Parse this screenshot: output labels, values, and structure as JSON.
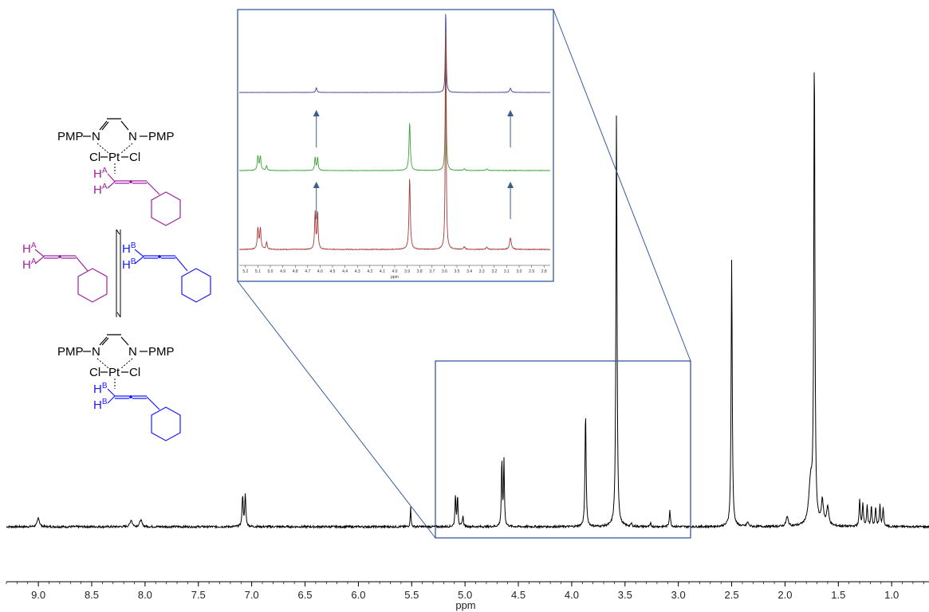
{
  "chart_data": {
    "type": "line",
    "xlabel": "ppm",
    "xlim": [
      9.3,
      0.65
    ],
    "x_ticks": [
      "9.0",
      "8.5",
      "8.0",
      "7.5",
      "7.0",
      "6.5",
      "6.0",
      "5.5",
      "5.0",
      "4.5",
      "4.0",
      "3.5",
      "3.0",
      "2.5",
      "2.0",
      "1.5",
      "1.0"
    ],
    "series": [
      {
        "peaks": [
          {
            "ppm": 9.0,
            "height": 0.017,
            "width": 0.012
          },
          {
            "ppm": 8.13,
            "height": 0.013,
            "width": 0.012
          },
          {
            "ppm": 8.04,
            "height": 0.013,
            "width": 0.012
          },
          {
            "ppm": 7.085,
            "height": 0.06,
            "width": 0.006
          },
          {
            "ppm": 7.06,
            "height": 0.06,
            "width": 0.006
          },
          {
            "ppm": 5.51,
            "height": 0.04,
            "width": 0.004
          },
          {
            "ppm": 5.09,
            "height": 0.06,
            "width": 0.005
          },
          {
            "ppm": 5.07,
            "height": 0.06,
            "width": 0.005
          },
          {
            "ppm": 5.02,
            "height": 0.02,
            "width": 0.006
          },
          {
            "ppm": 4.655,
            "height": 0.125,
            "width": 0.005
          },
          {
            "ppm": 4.635,
            "height": 0.125,
            "width": 0.005
          },
          {
            "ppm": 3.87,
            "height": 0.22,
            "width": 0.006
          },
          {
            "ppm": 3.58,
            "height": 0.79,
            "width": 0.006
          },
          {
            "ppm": 3.44,
            "height": 0.006,
            "width": 0.005
          },
          {
            "ppm": 3.26,
            "height": 0.006,
            "width": 0.005
          },
          {
            "ppm": 3.08,
            "height": 0.032,
            "width": 0.006
          },
          {
            "ppm": 2.5,
            "height": 0.51,
            "width": 0.006
          },
          {
            "ppm": 2.35,
            "height": 0.008,
            "width": 0.01
          },
          {
            "ppm": 1.98,
            "height": 0.018,
            "width": 0.012
          },
          {
            "ppm": 1.76,
            "height": 0.08,
            "width": 0.02
          },
          {
            "ppm": 1.725,
            "height": 0.9,
            "width": 0.006
          },
          {
            "ppm": 1.65,
            "height": 0.045,
            "width": 0.012
          },
          {
            "ppm": 1.6,
            "height": 0.035,
            "width": 0.012
          },
          {
            "ppm": 1.3,
            "height": 0.05,
            "width": 0.006
          },
          {
            "ppm": 1.27,
            "height": 0.045,
            "width": 0.006
          },
          {
            "ppm": 1.23,
            "height": 0.038,
            "width": 0.006
          },
          {
            "ppm": 1.19,
            "height": 0.038,
            "width": 0.006
          },
          {
            "ppm": 1.15,
            "height": 0.035,
            "width": 0.006
          },
          {
            "ppm": 1.11,
            "height": 0.04,
            "width": 0.006
          },
          {
            "ppm": 1.08,
            "height": 0.035,
            "width": 0.006
          }
        ]
      }
    ],
    "inset": {
      "xlim": [
        5.25,
        2.75
      ],
      "x_ticks": [
        "5.2",
        "5.1",
        "5.0",
        "4.9",
        "4.8",
        "4.7",
        "4.6",
        "4.5",
        "4.4",
        "4.3",
        "4.2",
        "4.1",
        "4.0",
        "3.9",
        "3.8",
        "3.7",
        "3.6",
        "3.5",
        "3.4",
        "3.3",
        "3.2",
        "3.1",
        "3.0",
        "2.9",
        "2.8"
      ],
      "xlabel": "ppm",
      "traces": [
        {
          "color": "#3b3f96",
          "peaks": [
            {
              "ppm": 4.63,
              "height": 0.055,
              "width": 0.006
            },
            {
              "ppm": 3.59,
              "height": 1.0,
              "width": 0.004
            },
            {
              "ppm": 3.07,
              "height": 0.05,
              "width": 0.008
            }
          ]
        },
        {
          "color": "#3aa33a",
          "peaks": [
            {
              "ppm": 5.1,
              "height": 0.09,
              "width": 0.006
            },
            {
              "ppm": 5.08,
              "height": 0.09,
              "width": 0.006
            },
            {
              "ppm": 5.03,
              "height": 0.03,
              "width": 0.006
            },
            {
              "ppm": 4.64,
              "height": 0.085,
              "width": 0.005
            },
            {
              "ppm": 4.62,
              "height": 0.085,
              "width": 0.005
            },
            {
              "ppm": 3.88,
              "height": 0.31,
              "width": 0.006
            },
            {
              "ppm": 3.59,
              "height": 0.95,
              "width": 0.004
            },
            {
              "ppm": 3.44,
              "height": 0.01,
              "width": 0.008
            },
            {
              "ppm": 3.26,
              "height": 0.01,
              "width": 0.008
            }
          ]
        },
        {
          "color": "#a83a3a",
          "peaks": [
            {
              "ppm": 5.1,
              "height": 0.09,
              "width": 0.006
            },
            {
              "ppm": 5.08,
              "height": 0.09,
              "width": 0.006
            },
            {
              "ppm": 5.03,
              "height": 0.03,
              "width": 0.006
            },
            {
              "ppm": 4.64,
              "height": 0.16,
              "width": 0.005
            },
            {
              "ppm": 4.62,
              "height": 0.16,
              "width": 0.005
            },
            {
              "ppm": 3.88,
              "height": 0.31,
              "width": 0.006
            },
            {
              "ppm": 3.59,
              "height": 1.0,
              "width": 0.004
            },
            {
              "ppm": 3.44,
              "height": 0.01,
              "width": 0.008
            },
            {
              "ppm": 3.26,
              "height": 0.01,
              "width": 0.008
            },
            {
              "ppm": 3.07,
              "height": 0.05,
              "width": 0.008
            }
          ]
        }
      ],
      "arrows": [
        {
          "ppm": 4.63,
          "between": "upper"
        },
        {
          "ppm": 3.07,
          "between": "upper"
        },
        {
          "ppm": 4.63,
          "between": "lower"
        },
        {
          "ppm": 3.07,
          "between": "lower"
        }
      ],
      "zoom_region_ppm": [
        5.3,
        2.9
      ],
      "box_color": "#3559a3"
    }
  },
  "structures": {
    "pmp_left": "PMP",
    "pmp_right": "PMP",
    "n_left": "N",
    "n_right": "N",
    "cl_left": "Cl",
    "cl_right": "Cl",
    "pt": "Pt",
    "h_label": "H",
    "sup_a": "A",
    "sup_b": "B",
    "color_a": "#a020a0",
    "color_b": "#1a1aff"
  }
}
